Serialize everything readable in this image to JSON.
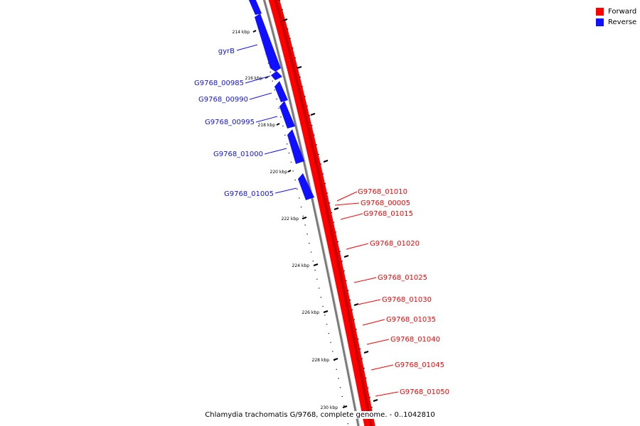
{
  "colors": {
    "forward": "#ff0000",
    "reverse": "#1010ff",
    "backbone": "#7a7a7a",
    "tick": "#000000"
  },
  "legend": [
    {
      "label": "Forward",
      "color": "#ff0000"
    },
    {
      "label": "Reverse",
      "color": "#1010ff"
    }
  ],
  "ticks": [
    "214 kbp",
    "216 kbp",
    "218 kbp",
    "220 kbp",
    "222 kbp",
    "224 kbp",
    "226 kbp",
    "228 kbp",
    "230 kbp"
  ],
  "reverse_genes": [
    "gyrB",
    "G9768_00985",
    "G9768_00990",
    "G9768_00995",
    "G9768_01000",
    "G9768_01005"
  ],
  "forward_genes": [
    "G9768_01010",
    "G9768_00005",
    "G9768_01015",
    "G9768_01020",
    "G9768_01025",
    "G9768_01030",
    "G9768_01035",
    "G9768_01040",
    "G9768_01045",
    "G9768_01050"
  ],
  "caption": "Chlamydia trachomatis G/9768, complete genome. - 0..1042810"
}
